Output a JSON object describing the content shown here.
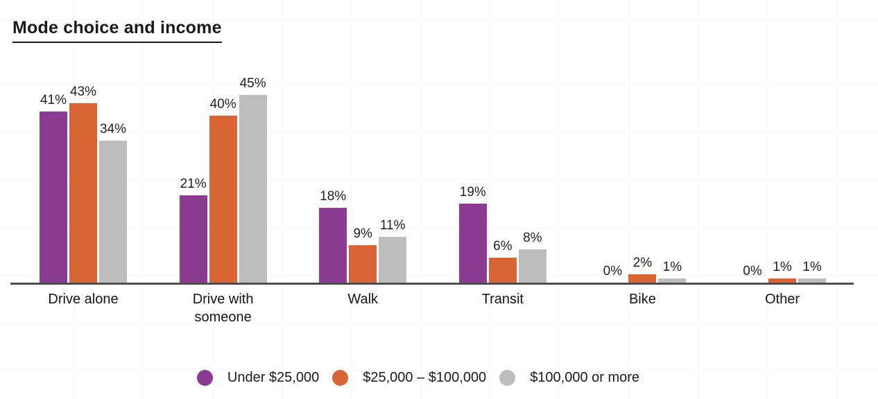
{
  "chart_data": {
    "type": "bar",
    "title": "Mode choice and income",
    "categories": [
      "Drive alone",
      "Drive with someone",
      "Walk",
      "Transit",
      "Bike",
      "Other"
    ],
    "series": [
      {
        "name": "Under $25,000",
        "color": "#8b3b92",
        "values": [
          41,
          21,
          18,
          19,
          0,
          0
        ],
        "labels": [
          "41%",
          "21%",
          "18%",
          "19%",
          "0%",
          "0%"
        ]
      },
      {
        "name": "$25,000 – $100,000",
        "color": "#d96537",
        "values": [
          43,
          40,
          9,
          6,
          2,
          1
        ],
        "labels": [
          "43%",
          "40%",
          "9%",
          "6%",
          "2%",
          "1%"
        ]
      },
      {
        "name": "$100,000 or more",
        "color": "#bdbdbd",
        "values": [
          34,
          45,
          11,
          8,
          1,
          1
        ],
        "labels": [
          "34%",
          "45%",
          "11%",
          "8%",
          "1%",
          "1%"
        ]
      }
    ],
    "value_suffix": "%",
    "xlabel": "",
    "ylabel": "",
    "ylim": [
      0,
      45
    ],
    "grid": "faint",
    "legend_position": "bottom",
    "data_labels": true,
    "axis_color": "#4d4d4d",
    "text_color": "#1a1a1a"
  }
}
